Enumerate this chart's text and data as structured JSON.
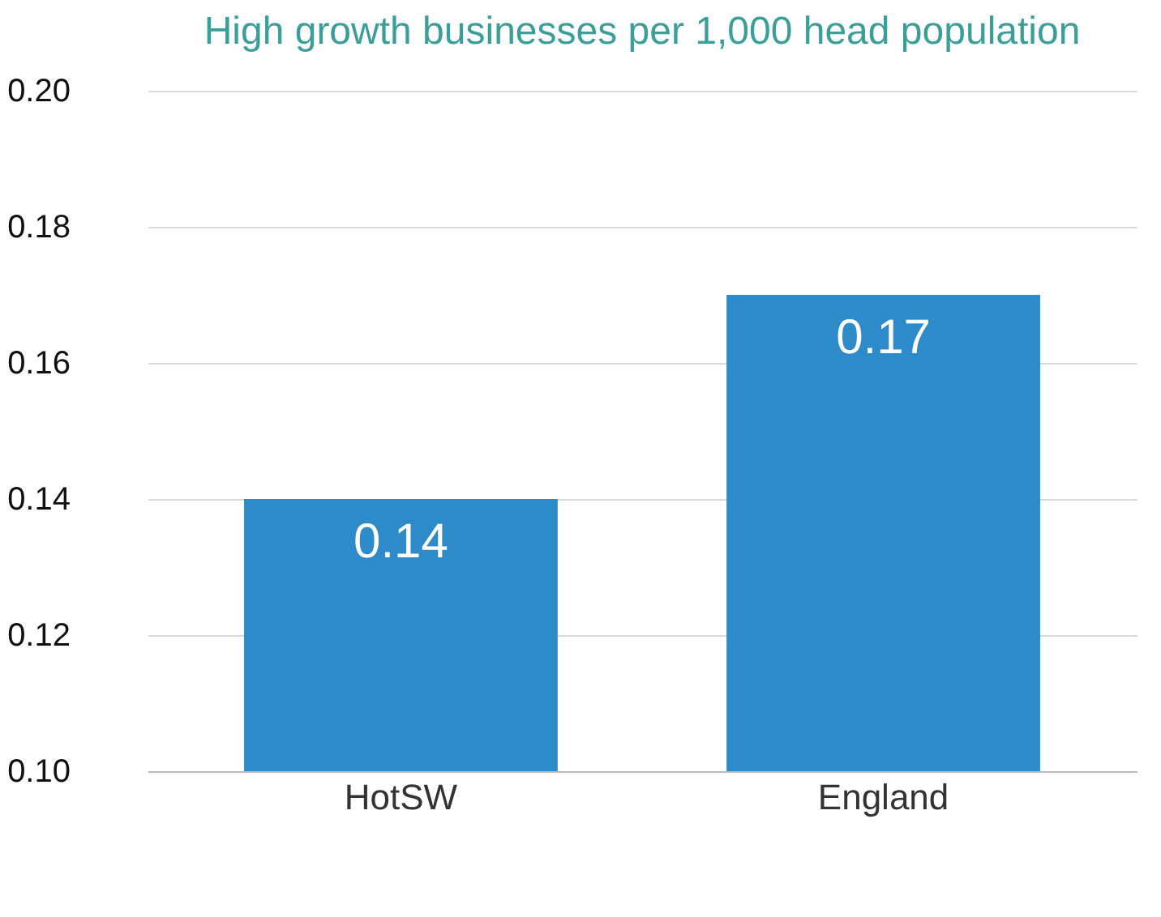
{
  "chart_data": {
    "type": "bar",
    "title": "High growth businesses per 1,000 head population",
    "categories": [
      "HotSW",
      "England"
    ],
    "values": [
      0.14,
      0.17
    ],
    "color": "#2e8bc9",
    "ylim": [
      0.1,
      0.2
    ],
    "yticks": [
      {
        "value": 0.1,
        "label": "0.10"
      },
      {
        "value": 0.12,
        "label": "0.12"
      },
      {
        "value": 0.14,
        "label": "0.14"
      },
      {
        "value": 0.16,
        "label": "0.16"
      },
      {
        "value": 0.18,
        "label": "0.18"
      },
      {
        "value": 0.2,
        "label": "0.20"
      }
    ],
    "grid": "y",
    "data_labels": true
  }
}
